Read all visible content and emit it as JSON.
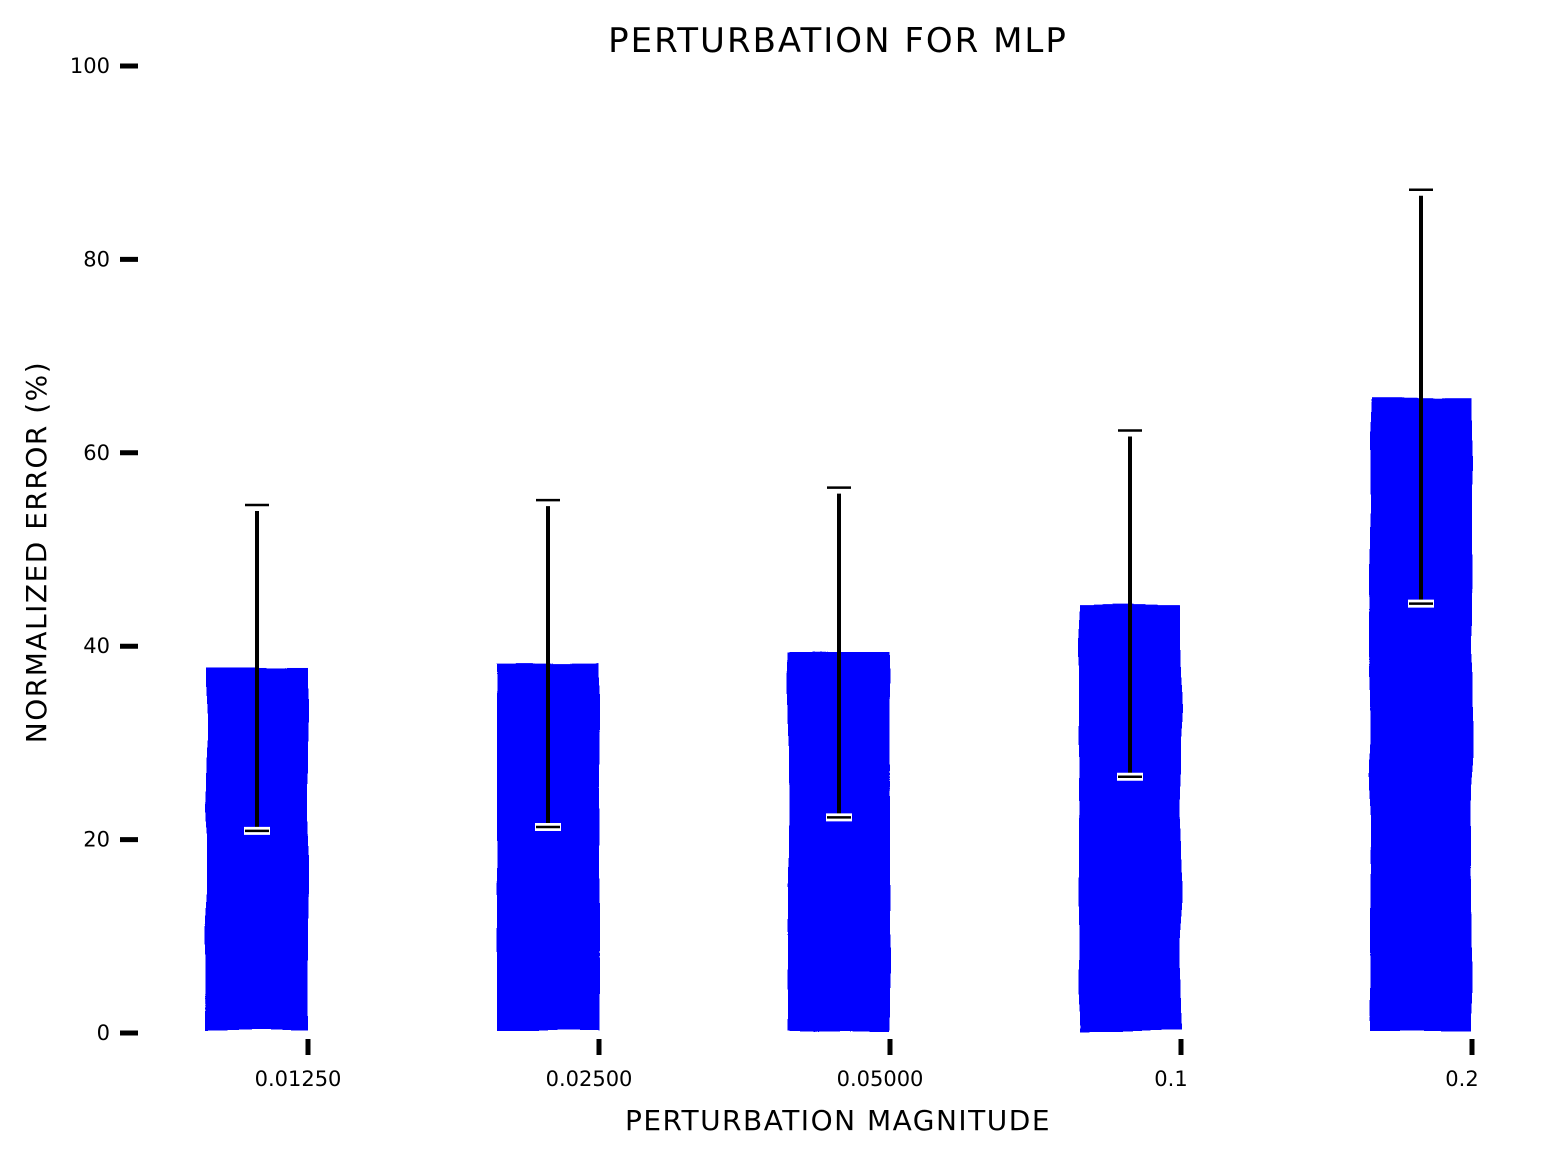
{
  "chart_data": {
    "type": "bar",
    "title": "PERTURBATION FOR MLP",
    "xlabel": "PERTURBATION MAGNITUDE",
    "ylabel": "NORMALIZED ERROR (%)",
    "categories": [
      "0.01250",
      "0.02500",
      "0.05000",
      "0.1",
      "0.2"
    ],
    "values": [
      37.8,
      38.2,
      39.4,
      44.3,
      65.8
    ],
    "error_low": [
      20.9,
      21.3,
      22.3,
      26.5,
      44.4
    ],
    "error_high": [
      54.6,
      55.1,
      56.4,
      62.3,
      87.2
    ],
    "yticks": [
      "0",
      "20",
      "40",
      "60",
      "80",
      "100"
    ],
    "ylim": [
      0,
      100
    ],
    "grid": false,
    "bar_color": "#0000ff",
    "error_color": "#000000",
    "style": "xkcd"
  }
}
